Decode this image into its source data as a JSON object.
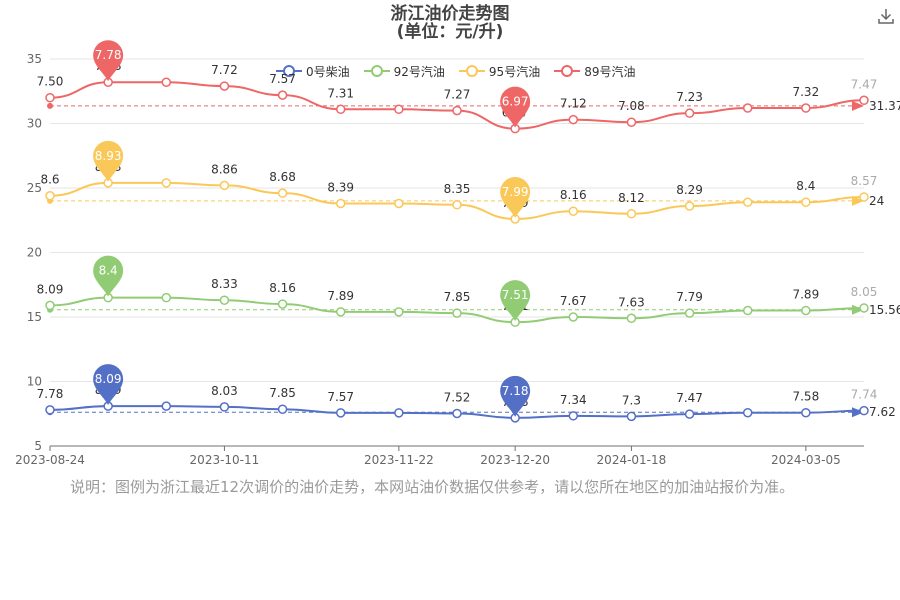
{
  "chart_data": {
    "type": "line",
    "title": "浙江油价走势图",
    "subtitle": "(单位：元/升)",
    "x": [
      "2023-08-24",
      "2023-09-08",
      "2023-09-22",
      "2023-10-11",
      "2023-10-25",
      "2023-11-08",
      "2023-11-22",
      "2023-12-06",
      "2023-12-20",
      "2024-01-03",
      "2024-01-18",
      "2024-02-01",
      "2024-02-19",
      "2024-03-05",
      "2024-03-20"
    ],
    "xticks": [
      "2023-08-24",
      "2023-10-11",
      "2023-11-22",
      "2023-12-20",
      "2024-01-18",
      "2024-03-05"
    ],
    "ylim": [
      5,
      35
    ],
    "yticks": [
      5,
      10,
      15,
      20,
      25,
      30,
      35
    ],
    "grid": true,
    "legend_position": "top",
    "series": [
      {
        "name": "0号柴油",
        "color": "#5470c6",
        "values": [
          7.8,
          8.09,
          8.09,
          8.03,
          7.85,
          7.57,
          7.57,
          7.52,
          7.18,
          7.34,
          7.3,
          7.47,
          7.58,
          7.58,
          7.74
        ],
        "labels": [
          "7.78",
          "8.09",
          "",
          "8.03",
          "7.85",
          "7.57",
          "",
          "7.52",
          "7.18",
          "7.34",
          "7.3",
          "7.47",
          "",
          "7.58",
          "7.74"
        ],
        "pin": {
          "x": "2023-09-08",
          "text": "8.09"
        },
        "pin2": {
          "x": "2023-12-20",
          "text": "7.18"
        },
        "avg": 7.62,
        "avg_label": "7.62",
        "last_label": "7.74"
      },
      {
        "name": "92号汽油",
        "color": "#91cc75",
        "values": [
          15.9,
          16.5,
          16.5,
          16.3,
          16.0,
          15.4,
          15.4,
          15.3,
          14.6,
          15.0,
          14.9,
          15.3,
          15.5,
          15.5,
          15.7
        ],
        "labels": [
          "8.09",
          "8.4",
          "",
          "8.33",
          "8.16",
          "7.89",
          "",
          "7.85",
          "7.51",
          "7.67",
          "7.63",
          "7.79",
          "",
          "7.89",
          "8.05"
        ],
        "pin": {
          "x": "2023-09-08",
          "text": "8.4"
        },
        "pin2": {
          "x": "2023-12-20",
          "text": "7.51"
        },
        "avg": 15.56,
        "avg_label": "15.56",
        "last_label": "8.05"
      },
      {
        "name": "95号汽油",
        "color": "#fac858",
        "values": [
          24.4,
          25.4,
          25.4,
          25.2,
          24.6,
          23.8,
          23.8,
          23.7,
          22.6,
          23.2,
          23.0,
          23.6,
          23.9,
          23.9,
          24.3
        ],
        "labels": [
          "8.6",
          "8.93",
          "",
          "8.86",
          "8.68",
          "8.39",
          "",
          "8.35",
          "7.99",
          "8.16",
          "8.12",
          "8.29",
          "",
          "8.4",
          "8.57"
        ],
        "pin": {
          "x": "2023-09-08",
          "text": "8.93"
        },
        "pin2": {
          "x": "2023-12-20",
          "text": "7.99"
        },
        "avg": 24,
        "avg_label": "24",
        "last_label": "8.57"
      },
      {
        "name": "89号汽油",
        "color": "#ee6666",
        "values": [
          32.0,
          33.2,
          33.2,
          32.9,
          32.2,
          31.1,
          31.1,
          31.0,
          29.6,
          30.3,
          30.1,
          30.8,
          31.2,
          31.2,
          31.8
        ],
        "labels": [
          "7.50",
          "7.78",
          "",
          "7.72",
          "7.57",
          "7.31",
          "",
          "7.27",
          "6.97",
          "7.12",
          "7.08",
          "7.23",
          "",
          "7.32",
          "7.47"
        ],
        "pin": {
          "x": "2023-09-08",
          "text": "7.78"
        },
        "pin2": {
          "x": "2023-12-20",
          "text": "6.97"
        },
        "avg": 31.37,
        "avg_label": "31.37",
        "last_label": "7.47"
      }
    ]
  },
  "note": "说明：图例为浙江最近12次调价的油价走势，本网站油价数据仅供参考，请以您所在地区的加油站报价为准。",
  "download_icon": "download-icon"
}
